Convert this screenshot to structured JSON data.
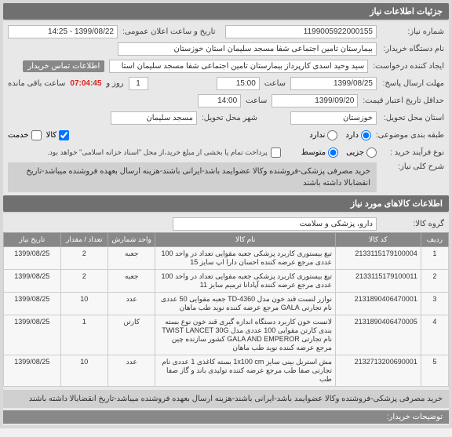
{
  "header": {
    "title": "جزئیات اطلاعات نیاز"
  },
  "need": {
    "number_label": "شماره نیاز:",
    "number": "1199005922000155",
    "announce_label": "تاریخ و ساعت اعلان عمومی:",
    "announce": "1399/08/22 - 14:25",
    "buyer_label": "نام دستگاه خریدار:",
    "buyer": "بیمارستان تامین اجتماعی شفا مسجد سلیمان استان خوزستان",
    "creator_label": "ایجاد کننده درخواست:",
    "creator": "سید وحید اسدی کارپرداز بیمارستان تامین اجتماعی شفا مسجد سلیمان استا",
    "contact_badge": "اطلاعات تماس خریدار",
    "deadline_label": "مهلت ارسال پاسخ:",
    "date_label": "تا تاریخ:",
    "deadline_date": "1399/08/25",
    "time_label": "ساعت",
    "deadline_time": "15:00",
    "days_label": "روز و",
    "days": "1",
    "countdown": "07:04:45",
    "remain_label": "ساعت باقی مانده",
    "validity_label": "حداقل تاریخ اعتبار قیمت:",
    "validity_date": "1399/09/20",
    "validity_time": "14:00",
    "delivery_state_label": "استان محل تحویل:",
    "delivery_state": "خوزستان",
    "delivery_city_label": "شهر محل تحویل:",
    "delivery_city": "مسجد سلیمان",
    "budget_label": "طبقه بندی موضوعی:",
    "budget_yes": "دارد",
    "budget_no": "ندارد",
    "goods_label": "کالا",
    "service_label": "خدمت",
    "process_label": "نوع فرآیند خرید :",
    "proc_small": "جزیی",
    "proc_med": "متوسط",
    "pay_note": "پرداخت تمام یا بخشی از مبلغ خرید،از محل \"اسناد خزانه اسلامی\" خواهد بود.",
    "desc_label": "شرح کلی نیاز:",
    "desc": "خرید مصرفی پزشکی-فروشنده وکالا عضوایمد باشد-ایرانی باشند-هزینه ارسال بعهده فروشنده میباشد-تاریخ انقضابالا داشته باشند"
  },
  "goods": {
    "header": "اطلاعات کالاهای مورد نیاز",
    "group_label": "گروه کالا:",
    "group": "دارو، پزشکی و سلامت",
    "cols": {
      "idx": "ردیف",
      "code": "کد کالا",
      "name": "نام کالا",
      "unit": "واحد شمارش",
      "qty": "تعداد / مقدار",
      "date": "تاریخ نیاز"
    },
    "rows": [
      {
        "idx": "1",
        "code": "2133115179100004",
        "name": "تیغ بیستوری کاربرد پزشکی جعبه مقوایی تعداد در واحد 100 عددی مرجع عرضه کننده احسان دارا اپ سایز 15",
        "unit": "جعبه",
        "qty": "2",
        "date": "1399/08/25"
      },
      {
        "idx": "2",
        "code": "2133115179100011",
        "name": "تیغ بیستوری کاربرد پزشکی جعبه مقوایی تعداد در واحد 100 عددی مرجع عرضه کننده آپادانا ترمیم سایز 11",
        "unit": "جعبه",
        "qty": "2",
        "date": "1399/08/25"
      },
      {
        "idx": "3",
        "code": "2131890406470001",
        "name": "نوازر لنست قند خون مدل TD-4360 جعبه مقوایی 50 عددی نام تجارتی GALA مرجع عرضه کننده نوید طب ماهان",
        "unit": "عدد",
        "qty": "10",
        "date": "1399/08/25"
      },
      {
        "idx": "4",
        "code": "2131890406470005",
        "name": "لانست خون کاربرد دستگاه اندازه گیری قند خون نوع بسته بندی کارتن مقوایی 100 عددی مدل TWIST LANCET 30G نام تجارتی GALA AND EMPEROR کشور سازنده چین مرجع عرضه کننده نوید طب ماهان",
        "unit": "کارتن",
        "qty": "1",
        "date": "1399/08/25"
      },
      {
        "idx": "5",
        "code": "2132713200690001",
        "name": "مش استریل بینی سایز 1x100 cm بسته کاغذی 1 عددی نام تجارتی صفا طب مرجع عرضه کننده تولیدی باند و گاز صفا طب",
        "unit": "عدد",
        "qty": "10",
        "date": "1399/08/25"
      }
    ],
    "footer_desc": "خرید مصرفی پزشکی-فروشنده وکالا عضوایمد باشد-ایرانی باشند-هزینه ارسال بعهده فروشنده میباشد-تاریخ انقضابالا داشته باشند",
    "buyer_notes": "توضیحات خریدار:"
  }
}
